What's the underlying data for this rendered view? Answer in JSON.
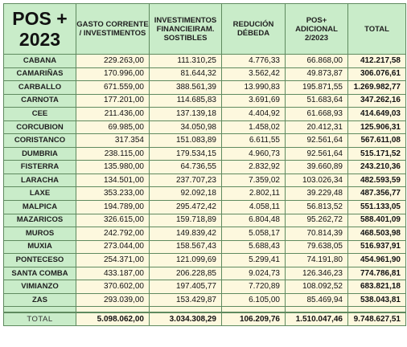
{
  "title_line1": "POS +",
  "title_line2": "2023",
  "headers": [
    "GASTO CORRENTE / INVESTIMENTOS",
    "INVESTIMENTOS FINANCIEIRAM. SOSTIBLES",
    "REDUCIÓN DÉBEDA",
    "POS+ ADICIONAL 2/2023",
    "TOTAL"
  ],
  "rows": [
    {
      "name": "CABANA",
      "gasto": "229.263,00",
      "invest": "111.310,25",
      "reducion": "4.776,33",
      "adicional": "66.868,00",
      "total": "412.217,58"
    },
    {
      "name": "CAMARIÑAS",
      "gasto": "170.996,00",
      "invest": "81.644,32",
      "reducion": "3.562,42",
      "adicional": "49.873,87",
      "total": "306.076,61"
    },
    {
      "name": "CARBALLO",
      "gasto": "671.559,00",
      "invest": "388.561,39",
      "reducion": "13.990,83",
      "adicional": "195.871,55",
      "total": "1.269.982,77"
    },
    {
      "name": "CARNOTA",
      "gasto": "177.201,00",
      "invest": "114.685,83",
      "reducion": "3.691,69",
      "adicional": "51.683,64",
      "total": "347.262,16"
    },
    {
      "name": "CEE",
      "gasto": "211.436,00",
      "invest": "137.139,18",
      "reducion": "4.404,92",
      "adicional": "61.668,93",
      "total": "414.649,03"
    },
    {
      "name": "CORCUBION",
      "gasto": "69.985,00",
      "invest": "34.050,98",
      "reducion": "1.458,02",
      "adicional": "20.412,31",
      "total": "125.906,31"
    },
    {
      "name": "CORISTANCO",
      "gasto": "317.354",
      "invest": "151.083,89",
      "reducion": "6.611,55",
      "adicional": "92.561,64",
      "total": "567.611,08"
    },
    {
      "name": "DUMBRIA",
      "gasto": "238.115,00",
      "invest": "179.534,15",
      "reducion": "4.960,73",
      "adicional": "92.561,64",
      "total": "515.171,52"
    },
    {
      "name": "FISTERRA",
      "gasto": "135.980,00",
      "invest": "64.736,55",
      "reducion": "2.832,92",
      "adicional": "39.660,89",
      "total": "243.210,36"
    },
    {
      "name": "LARACHA",
      "gasto": "134.501,00",
      "invest": "237.707,23",
      "reducion": "7.359,02",
      "adicional": "103.026,34",
      "total": "482.593,59"
    },
    {
      "name": "LAXE",
      "gasto": "353.233,00",
      "invest": "92.092,18",
      "reducion": "2.802,11",
      "adicional": "39.229,48",
      "total": "487.356,77"
    },
    {
      "name": "MALPICA",
      "gasto": "194.789,00",
      "invest": "295.472,42",
      "reducion": "4.058,11",
      "adicional": "56.813,52",
      "total": "551.133,05"
    },
    {
      "name": "MAZARICOS",
      "gasto": "326.615,00",
      "invest": "159.718,89",
      "reducion": "6.804,48",
      "adicional": "95.262,72",
      "total": "588.401,09"
    },
    {
      "name": "MUROS",
      "gasto": "242.792,00",
      "invest": "149.839,42",
      "reducion": "5.058,17",
      "adicional": "70.814,39",
      "total": "468.503,98"
    },
    {
      "name": "MUXIA",
      "gasto": "273.044,00",
      "invest": "158.567,43",
      "reducion": "5.688,43",
      "adicional": "79.638,05",
      "total": "516.937,91"
    },
    {
      "name": "PONTECESO",
      "gasto": "254.371,00",
      "invest": "121.099,69",
      "reducion": "5.299,41",
      "adicional": "74.191,80",
      "total": "454.961,90"
    },
    {
      "name": "SANTA COMBA",
      "gasto": "433.187,00",
      "invest": "206.228,85",
      "reducion": "9.024,73",
      "adicional": "126.346,23",
      "total": "774.786,81"
    },
    {
      "name": "VIMIANZO",
      "gasto": "370.602,00",
      "invest": "197.405,77",
      "reducion": "7.720,89",
      "adicional": "108.092,52",
      "total": "683.821,18"
    },
    {
      "name": "ZAS",
      "gasto": "293.039,00",
      "invest": "153.429,87",
      "reducion": "6.105,00",
      "adicional": "85.469,94",
      "total": "538.043,81"
    }
  ],
  "totals": {
    "label": "TOTAL",
    "gasto": "5.098.062,00",
    "invest": "3.034.308,29",
    "reducion": "106.209,76",
    "adicional": "1.510.047,46",
    "total": "9.748.627,51"
  }
}
